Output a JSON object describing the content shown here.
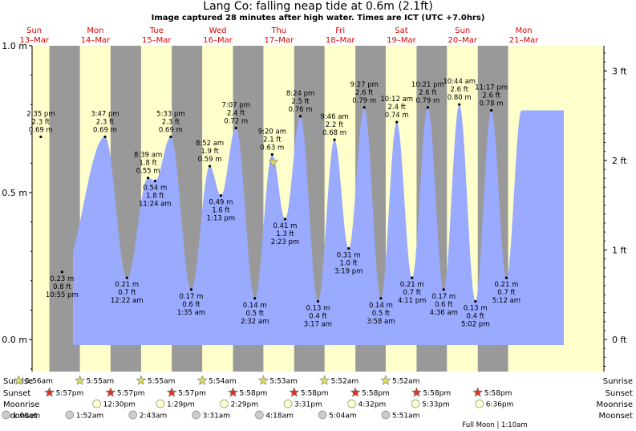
{
  "title": "Lang Co: falling  neap tide at 0.6m (2.1ft)",
  "subtitle": "Image captured 28 minutes after high water. Times are ICT (UTC +7.0hrs)",
  "days": [
    {
      "dow": "Sun",
      "date": "13–Mar"
    },
    {
      "dow": "Mon",
      "date": "14–Mar"
    },
    {
      "dow": "Tue",
      "date": "15–Mar"
    },
    {
      "dow": "Wed",
      "date": "16–Mar"
    },
    {
      "dow": "Thu",
      "date": "17–Mar"
    },
    {
      "dow": "Fri",
      "date": "18–Mar"
    },
    {
      "dow": "Sat",
      "date": "19–Mar"
    },
    {
      "dow": "Sun",
      "date": "20–Mar"
    },
    {
      "dow": "Mon",
      "date": "21–Mar"
    }
  ],
  "colors": {
    "day": "#ffffcc",
    "night": "#999999",
    "water": "#99aaff",
    "day_label": "#dd0000",
    "sunset_star": "#dd3322",
    "sunrise_star": "#dddd55",
    "moon_circle": "#ffffcc",
    "moonset_circle": "#cccccc"
  },
  "chart_data": {
    "type": "area",
    "title": "Lang Co: falling  neap tide at 0.6m (2.1ft)",
    "y_left_unit": "m",
    "y_right_unit": "ft",
    "y_left_ticks": [
      "0.0 m",
      "0.5 m",
      "1.0 m"
    ],
    "y_right_ticks": [
      "0 ft",
      "1 ft",
      "2 ft",
      "3 ft"
    ],
    "ylim_m": [
      -0.18,
      1.0
    ],
    "x_range_days": [
      "13-Mar 00:00",
      "22-Mar 00:00"
    ],
    "tides": [
      {
        "day": 0,
        "time": "2:35 pm",
        "ft": "2.3 ft",
        "m": "0.69 m",
        "v": 0.69,
        "type": "high"
      },
      {
        "day": 0,
        "time": "10:55 pm",
        "ft": "0.8 ft",
        "m": "0.23 m",
        "v": 0.23,
        "type": "low"
      },
      {
        "day": 1,
        "time": "3:47 pm",
        "ft": "2.3 ft",
        "m": "0.69 m",
        "v": 0.69,
        "type": "high"
      },
      {
        "day": 2,
        "time": "12:22 am",
        "ft": "0.7 ft",
        "m": "0.21 m",
        "v": 0.21,
        "type": "low"
      },
      {
        "day": 2,
        "time": "8:39 am",
        "ft": "1.8 ft",
        "m": "0.55 m",
        "v": 0.55,
        "type": "high"
      },
      {
        "day": 2,
        "time": "11:24 am",
        "ft": "1.8 ft",
        "m": "0.54 m",
        "v": 0.54,
        "type": "low"
      },
      {
        "day": 2,
        "time": "5:33 pm",
        "ft": "2.3 ft",
        "m": "0.69 m",
        "v": 0.69,
        "type": "high"
      },
      {
        "day": 3,
        "time": "1:35 am",
        "ft": "0.6 ft",
        "m": "0.17 m",
        "v": 0.17,
        "type": "low"
      },
      {
        "day": 3,
        "time": "8:52 am",
        "ft": "1.9 ft",
        "m": "0.59 m",
        "v": 0.59,
        "type": "high"
      },
      {
        "day": 3,
        "time": "1:13 pm",
        "ft": "1.6 ft",
        "m": "0.49 m",
        "v": 0.49,
        "type": "low"
      },
      {
        "day": 3,
        "time": "7:07 pm",
        "ft": "2.4 ft",
        "m": "0.72 m",
        "v": 0.72,
        "type": "high"
      },
      {
        "day": 4,
        "time": "2:32 am",
        "ft": "0.5 ft",
        "m": "0.14 m",
        "v": 0.14,
        "type": "low"
      },
      {
        "day": 4,
        "time": "9:20 am",
        "ft": "2.1 ft",
        "m": "0.63 m",
        "v": 0.63,
        "type": "high"
      },
      {
        "day": 4,
        "time": "2:23 pm",
        "ft": "1.3 ft",
        "m": "0.41 m",
        "v": 0.41,
        "type": "low"
      },
      {
        "day": 4,
        "time": "8:24 pm",
        "ft": "2.5 ft",
        "m": "0.76 m",
        "v": 0.76,
        "type": "high"
      },
      {
        "day": 5,
        "time": "3:17 am",
        "ft": "0.4 ft",
        "m": "0.13 m",
        "v": 0.13,
        "type": "low"
      },
      {
        "day": 5,
        "time": "9:46 am",
        "ft": "2.2 ft",
        "m": "0.68 m",
        "v": 0.68,
        "type": "high"
      },
      {
        "day": 5,
        "time": "3:19 pm",
        "ft": "1.0 ft",
        "m": "0.31 m",
        "v": 0.31,
        "type": "low"
      },
      {
        "day": 5,
        "time": "9:27 pm",
        "ft": "2.6 ft",
        "m": "0.79 m",
        "v": 0.79,
        "type": "high"
      },
      {
        "day": 6,
        "time": "3:58 am",
        "ft": "0.5 ft",
        "m": "0.14 m",
        "v": 0.14,
        "type": "low"
      },
      {
        "day": 6,
        "time": "10:12 am",
        "ft": "2.4 ft",
        "m": "0.74 m",
        "v": 0.74,
        "type": "high"
      },
      {
        "day": 6,
        "time": "4:11 pm",
        "ft": "0.7 ft",
        "m": "0.21 m",
        "v": 0.21,
        "type": "low"
      },
      {
        "day": 6,
        "time": "10:21 pm",
        "ft": "2.6 ft",
        "m": "0.79 m",
        "v": 0.79,
        "type": "high"
      },
      {
        "day": 7,
        "time": "4:36 am",
        "ft": "0.6 ft",
        "m": "0.17 m",
        "v": 0.17,
        "type": "low"
      },
      {
        "day": 7,
        "time": "10:44 am",
        "ft": "2.6 ft",
        "m": "0.80 m",
        "v": 0.8,
        "type": "high"
      },
      {
        "day": 7,
        "time": "5:02 pm",
        "ft": "0.4 ft",
        "m": "0.13 m",
        "v": 0.13,
        "type": "low"
      },
      {
        "day": 7,
        "time": "11:17 pm",
        "ft": "2.6 ft",
        "m": "0.78 m",
        "v": 0.78,
        "type": "high"
      },
      {
        "day": 8,
        "time": "5:12 am",
        "ft": "0.7 ft",
        "m": "0.21 m",
        "v": 0.21,
        "type": "low"
      }
    ],
    "current": {
      "day": 4,
      "time": "9:48 am",
      "v": 0.6
    }
  },
  "rows": {
    "labels": [
      "Sunrise",
      "Sunset",
      "Moonrise",
      "Moonset"
    ],
    "sunrise": [
      {
        "day": 0,
        "time": "5:56am"
      },
      {
        "day": 1,
        "time": "5:55am"
      },
      {
        "day": 2,
        "time": "5:55am"
      },
      {
        "day": 3,
        "time": "5:54am"
      },
      {
        "day": 4,
        "time": "5:53am"
      },
      {
        "day": 5,
        "time": "5:52am"
      },
      {
        "day": 6,
        "time": "5:52am"
      }
    ],
    "sunset": [
      {
        "day": 0,
        "time": "5:57pm"
      },
      {
        "day": 1,
        "time": "5:57pm"
      },
      {
        "day": 2,
        "time": "5:57pm"
      },
      {
        "day": 3,
        "time": "5:58pm"
      },
      {
        "day": 4,
        "time": "5:58pm"
      },
      {
        "day": 5,
        "time": "5:58pm"
      },
      {
        "day": 6,
        "time": "5:58pm"
      },
      {
        "day": 7,
        "time": "5:58pm"
      }
    ],
    "moonrise": [
      {
        "day": 1,
        "time": "12:30pm"
      },
      {
        "day": 2,
        "time": "1:29pm"
      },
      {
        "day": 3,
        "time": "2:29pm"
      },
      {
        "day": 4,
        "time": "3:31pm"
      },
      {
        "day": 5,
        "time": "4:32pm"
      },
      {
        "day": 6,
        "time": "5:33pm"
      },
      {
        "day": 7,
        "time": "6:36pm"
      }
    ],
    "moonset": [
      {
        "day": 0,
        "time": "1:00am"
      },
      {
        "day": 1,
        "time": "1:52am"
      },
      {
        "day": 2,
        "time": "2:43am"
      },
      {
        "day": 3,
        "time": "3:31am"
      },
      {
        "day": 4,
        "time": "4:18am"
      },
      {
        "day": 5,
        "time": "5:04am"
      },
      {
        "day": 6,
        "time": "5:51am"
      }
    ],
    "full_moon": "Full Moon | 1:10am"
  }
}
